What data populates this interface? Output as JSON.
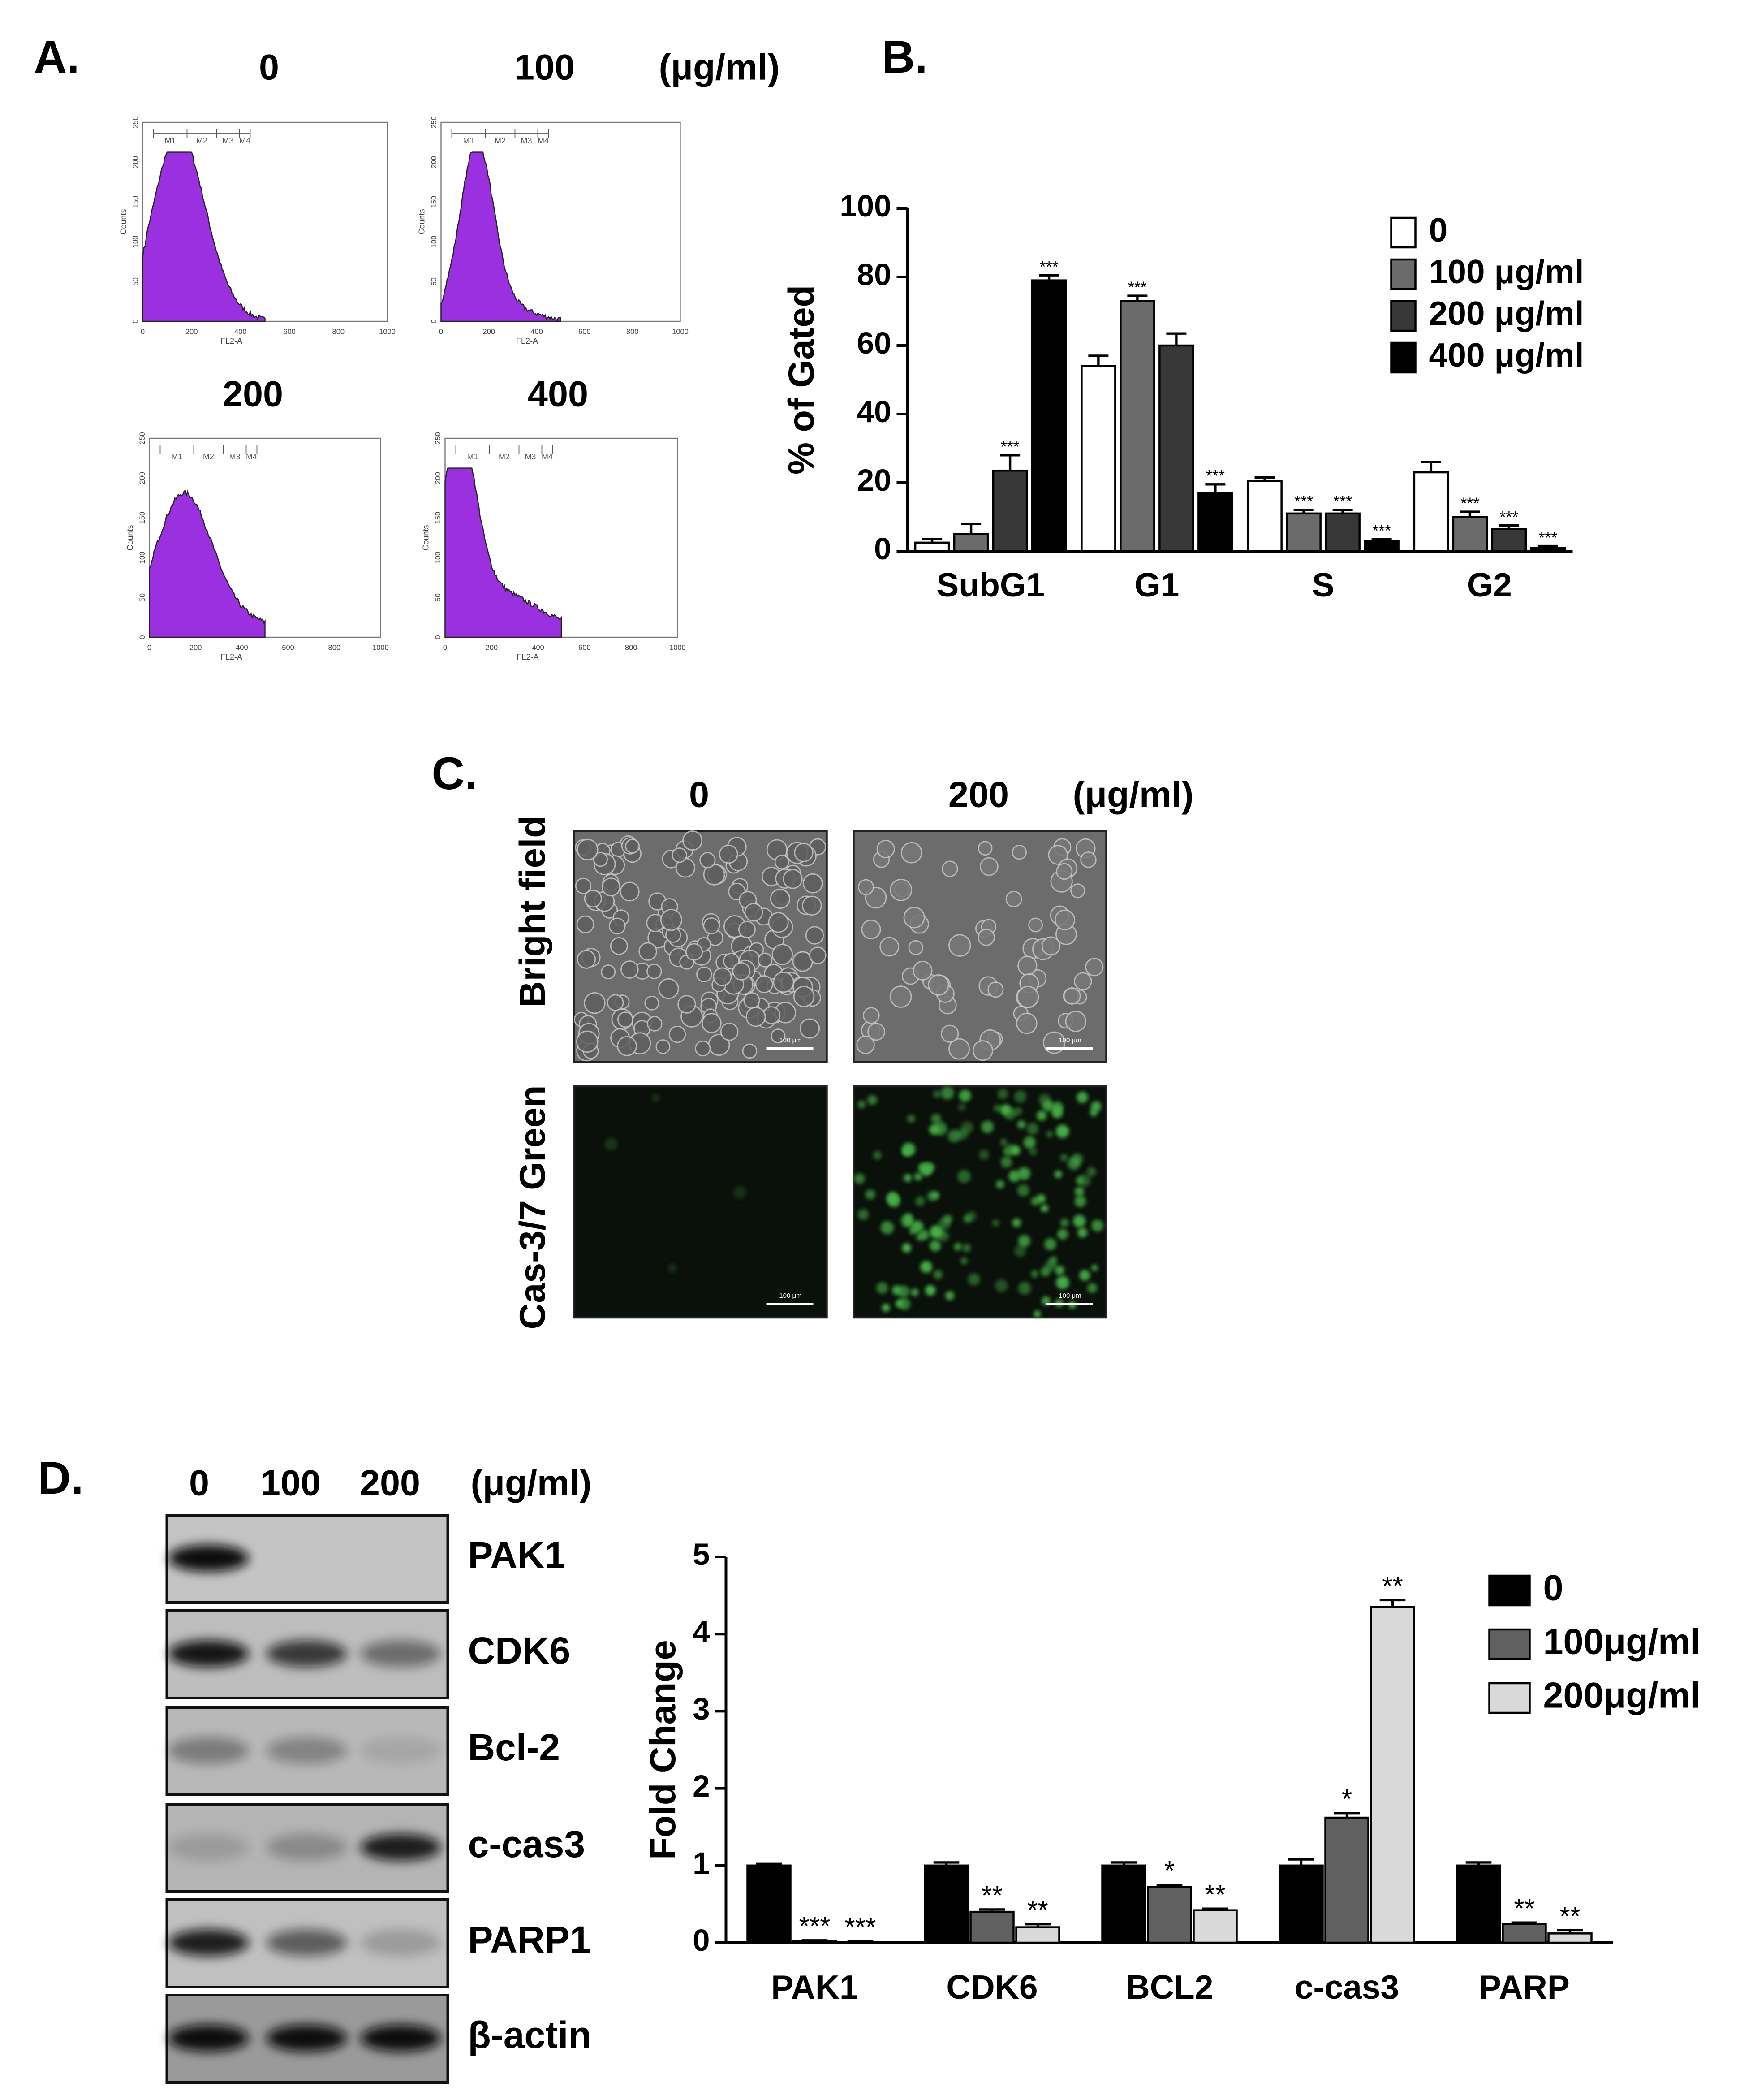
{
  "panel_a": {
    "label": "A.",
    "unit": "(μg/ml)",
    "histograms": [
      {
        "dose": "0"
      },
      {
        "dose": "100"
      },
      {
        "dose": "200"
      },
      {
        "dose": "400"
      }
    ],
    "markers": [
      "M1",
      "M2",
      "M3",
      "M4"
    ],
    "x_axis_label": "FL2-A",
    "y_axis_label": "Counts",
    "x_tick_labels": [
      "0",
      "200",
      "400",
      "600",
      "800",
      "1000"
    ],
    "y_tick_labels": [
      "0",
      "50",
      "100",
      "150",
      "200",
      "250"
    ]
  },
  "chart_data": [
    {
      "type": "bar",
      "panel_label": "B.",
      "y_label": "% of Gated",
      "categories": [
        "SubG1",
        "G1",
        "S",
        "G2"
      ],
      "series": [
        {
          "name": "0",
          "color": "#ffffff",
          "values": [
            2.5,
            54,
            20.5,
            23
          ],
          "errors": [
            1,
            3,
            1,
            3
          ],
          "significance": [
            null,
            null,
            null,
            null
          ]
        },
        {
          "name": "100 μg/ml",
          "color": "#6b6b6b",
          "values": [
            5,
            73,
            11,
            10
          ],
          "errors": [
            3,
            1.5,
            1,
            1.5
          ],
          "significance": [
            null,
            "***",
            "***",
            "***"
          ]
        },
        {
          "name": "200 μg/ml",
          "color": "#383838",
          "values": [
            23.5,
            60,
            11,
            6.5
          ],
          "errors": [
            4.5,
            3.5,
            1,
            1
          ],
          "significance": [
            "***",
            null,
            "***",
            "***"
          ]
        },
        {
          "name": "400 μg/ml",
          "color": "#000000",
          "values": [
            79,
            17,
            3,
            1
          ],
          "errors": [
            1.5,
            2.5,
            0.5,
            0.5
          ],
          "significance": [
            "***",
            "***",
            "***",
            "***"
          ]
        }
      ],
      "ylim": [
        0,
        100
      ],
      "yticks": [
        0,
        20,
        40,
        60,
        80,
        100
      ],
      "legend": "upper right"
    },
    {
      "type": "bar",
      "y_label": "Fold Change",
      "categories": [
        "PAK1",
        "CDK6",
        "BCL2",
        "c-cas3",
        "PARP"
      ],
      "series": [
        {
          "name": "0",
          "color": "#000000",
          "values": [
            1,
            1,
            1,
            1,
            1
          ],
          "errors": [
            0.02,
            0.04,
            0.04,
            0.08,
            0.04
          ],
          "significance": [
            null,
            null,
            null,
            null,
            null
          ]
        },
        {
          "name": "100μg/ml",
          "color": "#606060",
          "values": [
            0.02,
            0.4,
            0.72,
            1.62,
            0.24
          ],
          "errors": [
            0.01,
            0.03,
            0.03,
            0.06,
            0.02
          ],
          "significance": [
            "***",
            "**",
            "*",
            "*",
            "**"
          ]
        },
        {
          "name": "200μg/ml",
          "color": "#d9d9d9",
          "values": [
            0.01,
            0.2,
            0.42,
            4.35,
            0.12
          ],
          "errors": [
            0.01,
            0.04,
            0.02,
            0.09,
            0.04
          ],
          "significance": [
            "***",
            "**",
            "**",
            "**",
            "**"
          ]
        }
      ],
      "ylim": [
        0,
        5
      ],
      "yticks": [
        0,
        1,
        2,
        3,
        4,
        5
      ],
      "legend": "upper right"
    }
  ],
  "panel_c": {
    "label": "C.",
    "columns": [
      "0",
      "200"
    ],
    "unit": "(μg/ml)",
    "rows": [
      "Bright field",
      "Cas-3/7 Green"
    ],
    "scale_bar": "100 μm"
  },
  "panel_d_blot": {
    "label": "D.",
    "lanes": [
      "0",
      "100",
      "200"
    ],
    "unit": "(μg/ml)",
    "proteins": [
      "PAK1",
      "CDK6",
      "Bcl-2",
      "c-cas3",
      "PARP1",
      "β-actin"
    ]
  }
}
